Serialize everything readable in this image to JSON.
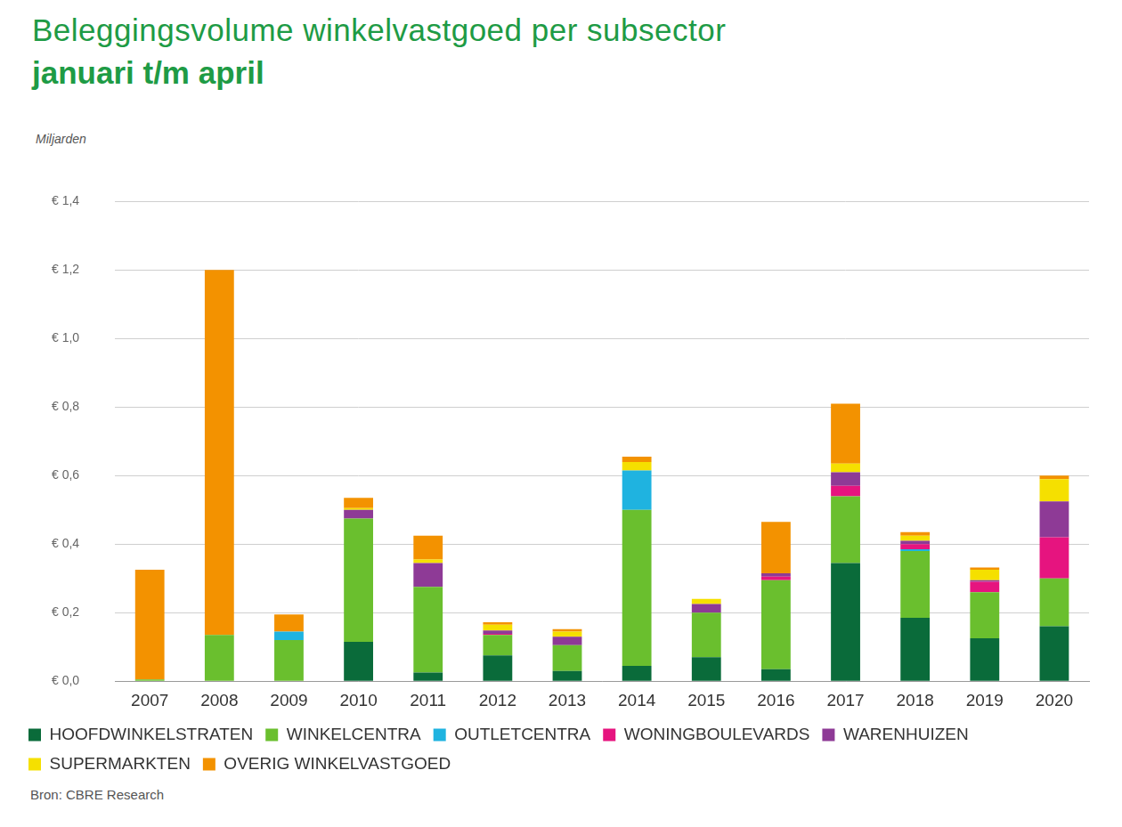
{
  "chart_data": {
    "type": "bar",
    "title": "Beleggingsvolume winkelvastgoed per subsector",
    "subtitle": "januari t/m april",
    "ylabel": "Miljarden",
    "source": "Bron: CBRE Research",
    "stacked": true,
    "grid": true,
    "legend": "bottom",
    "categories": [
      "2007",
      "2008",
      "2009",
      "2010",
      "2011",
      "2012",
      "2013",
      "2014",
      "2015",
      "2016",
      "2017",
      "2018",
      "2019",
      "2020"
    ],
    "series": [
      {
        "name": "HOOFDWINKELSTRATEN",
        "color": "#0a6b3a",
        "values": [
          0,
          0,
          0,
          0.115,
          0.025,
          0.075,
          0.03,
          0.045,
          0.07,
          0.035,
          0.345,
          0.185,
          0.125,
          0.16
        ]
      },
      {
        "name": "WINKELCENTRA",
        "color": "#6abf2e",
        "values": [
          0.005,
          0.135,
          0.12,
          0.36,
          0.25,
          0.06,
          0.075,
          0.455,
          0.13,
          0.26,
          0.195,
          0.195,
          0.135,
          0.14
        ]
      },
      {
        "name": "OUTLETCENTRA",
        "color": "#1fb3e0",
        "values": [
          0,
          0,
          0.025,
          0,
          0,
          0,
          0,
          0.115,
          0,
          0,
          0,
          0.005,
          0,
          0
        ]
      },
      {
        "name": "WONINGBOULEVARDS",
        "color": "#e6147f",
        "values": [
          0,
          0,
          0,
          0,
          0,
          0.003,
          0,
          0,
          0,
          0.01,
          0.03,
          0.015,
          0.03,
          0.12
        ]
      },
      {
        "name": "WARENHUIZEN",
        "color": "#8e3a96",
        "values": [
          0,
          0,
          0,
          0.025,
          0.07,
          0.01,
          0.025,
          0,
          0.025,
          0.01,
          0.04,
          0.01,
          0.005,
          0.105
        ]
      },
      {
        "name": "SUPERMARKTEN",
        "color": "#f5e000",
        "values": [
          0,
          0,
          0,
          0.005,
          0.01,
          0.017,
          0.015,
          0.025,
          0.015,
          0,
          0.025,
          0.015,
          0.03,
          0.065
        ]
      },
      {
        "name": "OVERIG WINKELVASTGOED",
        "color": "#f39200",
        "values": [
          0.32,
          1.065,
          0.05,
          0.03,
          0.07,
          0.007,
          0.007,
          0.015,
          0,
          0.15,
          0.175,
          0.01,
          0.007,
          0.01
        ]
      }
    ],
    "ylim": [
      0,
      1.4
    ],
    "yticks": [
      {
        "value": 0,
        "label": "€ 0,0"
      },
      {
        "value": 0.2,
        "label": "€ 0,2"
      },
      {
        "value": 0.4,
        "label": "€ 0,4"
      },
      {
        "value": 0.6,
        "label": "€ 0,6"
      },
      {
        "value": 0.8,
        "label": "€ 0,8"
      },
      {
        "value": 1.0,
        "label": "€ 1,0"
      },
      {
        "value": 1.2,
        "label": "€ 1,2"
      },
      {
        "value": 1.4,
        "label": "€ 1,4"
      }
    ]
  }
}
